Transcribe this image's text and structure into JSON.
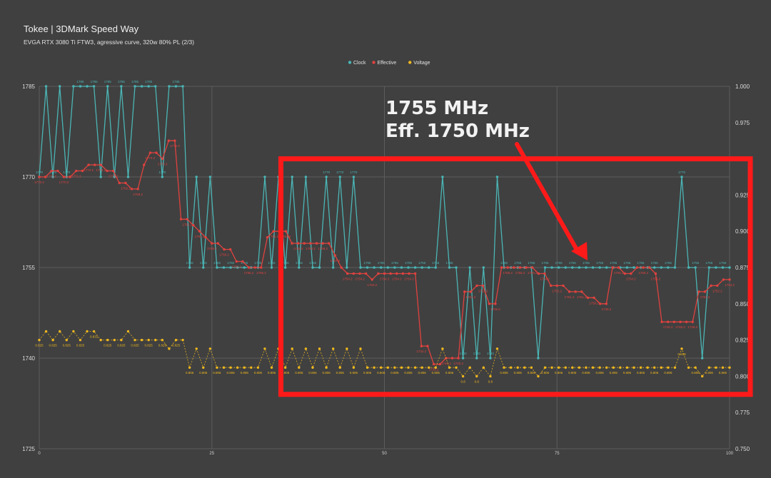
{
  "page": {
    "title": "Tokee | 3DMark Speed Way",
    "subtitle": "EVGA RTX 3080 Ti FTW3, agressive curve, 320w 80% PL (2/3)"
  },
  "annotation": {
    "line1": "1755 MHz",
    "line2": "Eff. 1750 MHz"
  },
  "colors": {
    "clock": "#4bb5b5",
    "effective": "#e0423f",
    "voltage": "#f0b81c",
    "highlight": "#ff1a1a",
    "background": "#404040",
    "grid": "#5c5c5c"
  },
  "chart_data": {
    "type": "line",
    "legend_position": "top-center",
    "grid": true,
    "x": {
      "range": [
        0,
        100
      ],
      "ticks": [
        "0",
        "25",
        "50",
        "75",
        "100"
      ]
    },
    "y_left": {
      "range": [
        1725,
        1785
      ],
      "ticks": [
        "1725",
        "1740",
        "1755",
        "1770",
        "1785"
      ]
    },
    "y_right": {
      "range": [
        0.75,
        1.0
      ],
      "ticks": [
        "0.750",
        "0.775",
        "0.800",
        "0.825",
        "0.850",
        "0.875",
        "0.900",
        "0.925",
        "0.950",
        "0.975",
        "1.000"
      ]
    },
    "highlight_box": {
      "x_range": [
        35,
        103
      ],
      "y_range": [
        1734,
        1773
      ]
    },
    "series": [
      {
        "name": "Clock",
        "axis": "left",
        "values": [
          1770,
          1785,
          1770,
          1785,
          1770,
          1785,
          1785,
          1785,
          1785,
          1770,
          1785,
          1770,
          1785,
          1770,
          1785,
          1785,
          1785,
          1785,
          1770,
          1785,
          1785,
          1785,
          1755,
          1770,
          1755,
          1770,
          1755,
          1755,
          1755,
          1755,
          1755,
          1755,
          1755,
          1770,
          1755,
          1770,
          1755,
          1770,
          1755,
          1770,
          1755,
          1755,
          1770,
          1755,
          1770,
          1755,
          1770,
          1755,
          1755,
          1755,
          1755,
          1755,
          1755,
          1755,
          1755,
          1755,
          1755,
          1755,
          1755,
          1770,
          1755,
          1755,
          1740,
          1755,
          1740,
          1755,
          1740,
          1770,
          1755,
          1755,
          1755,
          1755,
          1755,
          1740,
          1755,
          1755,
          1755,
          1755,
          1755,
          1755,
          1755,
          1755,
          1755,
          1755,
          1755,
          1755,
          1755,
          1755,
          1755,
          1755,
          1755,
          1755,
          1755,
          1755,
          1770,
          1755,
          1755,
          1740,
          1755,
          1755,
          1755,
          1755
        ]
      },
      {
        "name": "Effective",
        "axis": "left",
        "values": [
          1770,
          1770,
          1771,
          1771,
          1770,
          1770,
          1771,
          1771,
          1772,
          1772,
          1772,
          1771,
          1771,
          1769,
          1769,
          1768,
          1768,
          1772,
          1774,
          1774,
          1773,
          1776,
          1776,
          1763,
          1763,
          1762,
          1761,
          1760,
          1759,
          1759,
          1758,
          1758,
          1756,
          1756,
          1755,
          1755,
          1755,
          1760,
          1761,
          1761,
          1761,
          1759,
          1759,
          1759,
          1759,
          1759,
          1759,
          1759,
          1757,
          1755,
          1754,
          1754,
          1754,
          1754,
          1753,
          1754,
          1754,
          1754,
          1754,
          1754,
          1754,
          1754,
          1742,
          1742,
          1739,
          1739,
          1740,
          1740,
          1740,
          1751,
          1751,
          1752,
          1752,
          1749,
          1749,
          1755,
          1755,
          1755,
          1755,
          1755,
          1755,
          1754,
          1754,
          1752,
          1752,
          1752,
          1751,
          1751,
          1751,
          1750,
          1750,
          1749,
          1749,
          1755,
          1755,
          1754,
          1754,
          1755,
          1755,
          1755,
          1754,
          1746,
          1746,
          1746,
          1746,
          1746,
          1746,
          1751,
          1751,
          1752,
          1752,
          1753,
          1753
        ]
      },
      {
        "name": "Voltage",
        "axis": "right",
        "values": [
          0.825,
          0.831,
          0.825,
          0.831,
          0.825,
          0.831,
          0.825,
          0.831,
          0.831,
          0.825,
          0.825,
          0.825,
          0.825,
          0.831,
          0.825,
          0.825,
          0.825,
          0.825,
          0.825,
          0.819,
          0.825,
          0.825,
          0.806,
          0.819,
          0.806,
          0.819,
          0.806,
          0.806,
          0.806,
          0.806,
          0.806,
          0.806,
          0.806,
          0.819,
          0.806,
          0.819,
          0.806,
          0.819,
          0.806,
          0.819,
          0.806,
          0.819,
          0.806,
          0.819,
          0.806,
          0.819,
          0.806,
          0.819,
          0.806,
          0.806,
          0.806,
          0.806,
          0.806,
          0.806,
          0.806,
          0.806,
          0.806,
          0.806,
          0.806,
          0.819,
          0.806,
          0.806,
          0.8,
          0.806,
          0.8,
          0.806,
          0.8,
          0.819,
          0.806,
          0.806,
          0.806,
          0.806,
          0.806,
          0.8,
          0.806,
          0.806,
          0.806,
          0.806,
          0.806,
          0.806,
          0.806,
          0.806,
          0.806,
          0.806,
          0.806,
          0.806,
          0.806,
          0.806,
          0.806,
          0.806,
          0.806,
          0.806,
          0.806,
          0.806,
          0.819,
          0.806,
          0.806,
          0.8,
          0.806,
          0.806,
          0.806,
          0.806
        ]
      }
    ]
  }
}
